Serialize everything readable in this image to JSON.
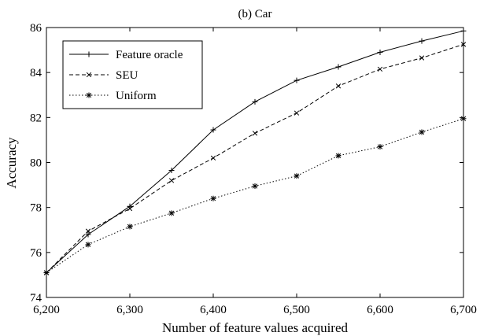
{
  "chart_data": {
    "type": "line",
    "title": "(b) Car",
    "xlabel": "Number of feature values acquired",
    "ylabel": "Accuracy",
    "xlim": [
      6200,
      6700
    ],
    "ylim": [
      74,
      86
    ],
    "xticks": [
      6200,
      6300,
      6400,
      6500,
      6600,
      6700
    ],
    "xtick_labels": [
      "6,200",
      "6,300",
      "6,400",
      "6,500",
      "6,600",
      "6,700"
    ],
    "yticks": [
      74,
      76,
      78,
      80,
      82,
      84,
      86
    ],
    "ytick_labels": [
      "74",
      "76",
      "78",
      "80",
      "82",
      "84",
      "86"
    ],
    "grid": false,
    "legend_position": "top-left",
    "x": [
      6200,
      6250,
      6300,
      6350,
      6400,
      6450,
      6500,
      6550,
      6600,
      6650,
      6700
    ],
    "series": [
      {
        "name": "Feature oracle",
        "line": "solid",
        "marker": "plus",
        "values": [
          75.1,
          76.8,
          78.05,
          79.65,
          81.45,
          82.7,
          83.65,
          84.25,
          84.9,
          85.4,
          85.85
        ]
      },
      {
        "name": "SEU",
        "line": "dashed",
        "marker": "x",
        "values": [
          75.1,
          76.95,
          77.95,
          79.2,
          80.2,
          81.3,
          82.2,
          83.4,
          84.15,
          84.65,
          85.25
        ]
      },
      {
        "name": "Uniform",
        "line": "dotted",
        "marker": "star",
        "values": [
          75.1,
          76.35,
          77.15,
          77.75,
          78.4,
          78.95,
          79.4,
          80.3,
          80.7,
          81.35,
          81.95
        ]
      }
    ]
  }
}
